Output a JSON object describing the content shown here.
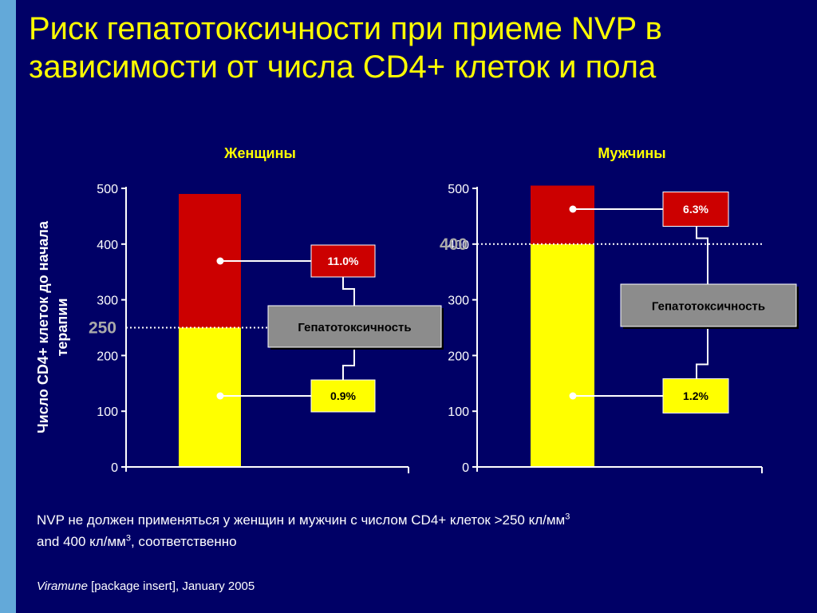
{
  "title": "Риск гепатотоксичности при приеме NVP в зависимости от числа CD4+ клеток и пола",
  "colors": {
    "background": "#000066",
    "title": "#ffff00",
    "risk_high": "#cc0000",
    "risk_low": "#ffff00",
    "label_box": "#808080",
    "stripe": "#63a9d9"
  },
  "chart_data": [
    {
      "type": "bar",
      "title": "Женщины",
      "ylabel": "Число CD4+ клеток до начала терапии",
      "ylim": [
        0,
        500
      ],
      "yticks": [
        "0",
        "100",
        "200",
        "300",
        "400",
        "500"
      ],
      "threshold": 250,
      "threshold_label": "250",
      "bar_top": 490,
      "segments": [
        {
          "range": [
            0,
            250
          ],
          "risk_label": "0.9%",
          "color": "#ffff00"
        },
        {
          "range": [
            250,
            490
          ],
          "risk_label": "11.0%",
          "color": "#cc0000"
        }
      ],
      "box_label": "Гепатотоксичность"
    },
    {
      "type": "bar",
      "title": "Мужчины",
      "ylim": [
        0,
        500
      ],
      "yticks": [
        "0",
        "100",
        "200",
        "300",
        "400",
        "500"
      ],
      "threshold": 400,
      "threshold_label": "400",
      "bar_top": 505,
      "segments": [
        {
          "range": [
            0,
            400
          ],
          "risk_label": "1.2%",
          "color": "#ffff00"
        },
        {
          "range": [
            400,
            505
          ],
          "risk_label": "6.3%",
          "color": "#cc0000"
        }
      ],
      "box_label": "Гепатотоксичность"
    }
  ],
  "footnote": {
    "line1": "NVP не должен применяться у женщин и мужчин с числом CD4+ клеток >250 кл/мм",
    "sup1": "3",
    "line2a": "and 400 кл/мм",
    "sup2": "3",
    "line2b": ", соответственно"
  },
  "source": {
    "italic": "Viramune",
    "rest": " [package insert], January 2005"
  }
}
